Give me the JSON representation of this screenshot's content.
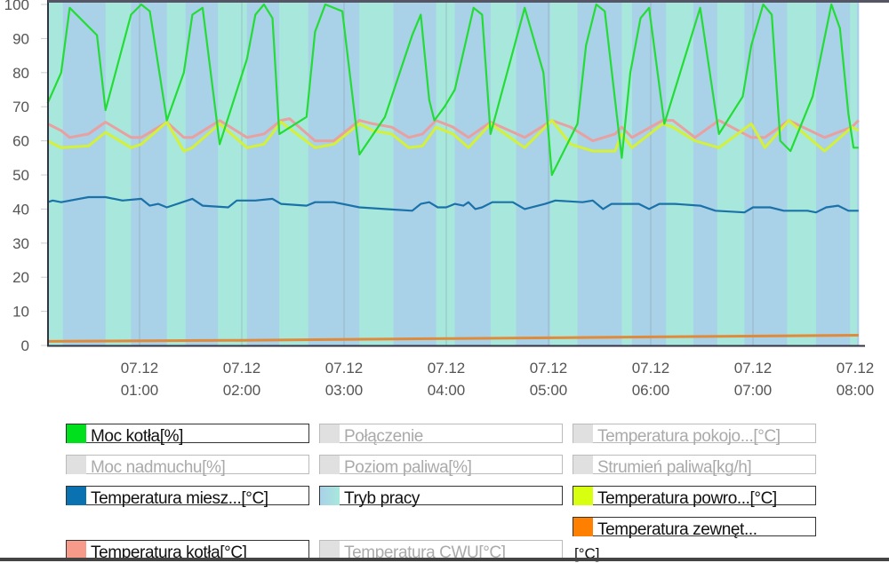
{
  "chart_data": {
    "type": "line",
    "ylim": [
      0,
      100
    ],
    "yticks": [
      "0",
      "10",
      "20",
      "30",
      "40",
      "50",
      "60",
      "70",
      "80",
      "90",
      "100"
    ],
    "xticks": [
      {
        "date": "07.12",
        "time": "01:00"
      },
      {
        "date": "07.12",
        "time": "02:00"
      },
      {
        "date": "07.12",
        "time": "03:00"
      },
      {
        "date": "07.12",
        "time": "04:00"
      },
      {
        "date": "07.12",
        "time": "05:00"
      },
      {
        "date": "07.12",
        "time": "06:00"
      },
      {
        "date": "07.12",
        "time": "07:00"
      },
      {
        "date": "07.12",
        "time": "08:00"
      }
    ],
    "xlim": [
      "00:06",
      "08:02"
    ],
    "grid": "vertical lines at hours",
    "background_bands": {
      "name": "Tryb pracy",
      "colors": [
        "#a8e8dc",
        "#a9d1e8"
      ],
      "boundaries": [
        "00:06",
        "00:15",
        "00:40",
        "00:55",
        "01:16",
        "01:27",
        "01:46",
        "02:03",
        "02:22",
        "02:39",
        "03:09",
        "03:29",
        "03:54",
        "04:05",
        "04:26",
        "04:41",
        "05:01",
        "05:17",
        "05:43",
        "05:49",
        "06:09",
        "06:25",
        "06:39",
        "06:55",
        "07:20",
        "07:37",
        "07:57",
        "08:01",
        "08:02"
      ]
    },
    "series": [
      {
        "name": "Moc kotła[%]",
        "color": "#22dd33",
        "x": [
          "00:06",
          "00:14",
          "00:19",
          "00:35",
          "00:40",
          "00:55",
          "01:01",
          "01:06",
          "01:16",
          "01:26",
          "01:31",
          "01:37",
          "01:47",
          "02:03",
          "02:08",
          "02:13",
          "02:18",
          "02:22",
          "02:38",
          "02:43",
          "02:49",
          "02:59",
          "03:09",
          "03:24",
          "03:40",
          "03:45",
          "03:50",
          "03:53",
          "03:59",
          "04:05",
          "04:16",
          "04:21",
          "04:26",
          "04:46",
          "04:57",
          "05:02",
          "05:17",
          "05:22",
          "05:28",
          "05:33",
          "05:43",
          "05:48",
          "05:54",
          "05:59",
          "06:08",
          "06:29",
          "06:40",
          "06:54",
          "06:59",
          "07:06",
          "07:11",
          "07:16",
          "07:22",
          "07:35",
          "07:46",
          "07:51",
          "07:56",
          "07:59",
          "08:02"
        ],
        "y": [
          71,
          80,
          99,
          91,
          69,
          97,
          100,
          98,
          66,
          80,
          97,
          99,
          59,
          84,
          97,
          100,
          96,
          62,
          67,
          92,
          100,
          98,
          56,
          67,
          91,
          97,
          72,
          66,
          70,
          75,
          99,
          97,
          62,
          99,
          80,
          50,
          65,
          88,
          100,
          98,
          55,
          80,
          96,
          99,
          65,
          99,
          62,
          73,
          88,
          100,
          97,
          60,
          57,
          73,
          100,
          93,
          68,
          58,
          58
        ]
      },
      {
        "name": "Temperatura kotła[°C]",
        "color": "#e8a0a0",
        "x": [
          "00:06",
          "00:14",
          "00:19",
          "00:30",
          "00:40",
          "00:55",
          "01:01",
          "01:16",
          "01:26",
          "01:31",
          "01:47",
          "02:03",
          "02:13",
          "02:23",
          "02:28",
          "02:43",
          "02:54",
          "03:09",
          "03:17",
          "03:28",
          "03:38",
          "03:46",
          "03:54",
          "04:04",
          "04:13",
          "04:26",
          "04:46",
          "05:02",
          "05:13",
          "05:26",
          "05:39",
          "05:43",
          "05:49",
          "06:07",
          "06:13",
          "06:26",
          "06:40",
          "06:59",
          "07:07",
          "07:21",
          "07:42",
          "07:58",
          "08:02"
        ],
        "y": [
          65,
          63,
          61,
          62,
          65.5,
          61,
          61,
          65.5,
          61,
          61,
          66,
          61,
          62,
          66,
          66.5,
          60,
          60,
          66,
          65,
          64,
          61,
          62,
          66,
          64,
          61,
          65.5,
          61,
          66,
          64,
          60,
          62,
          64,
          61,
          66,
          66,
          61,
          66,
          61,
          61,
          66,
          61,
          64,
          66
        ]
      },
      {
        "name": "Temperatura powro...[°C]",
        "color": "#d4f03a",
        "x": [
          "00:06",
          "00:14",
          "00:30",
          "00:40",
          "00:55",
          "01:01",
          "01:16",
          "01:26",
          "01:31",
          "01:47",
          "02:03",
          "02:13",
          "02:23",
          "02:43",
          "02:54",
          "03:09",
          "03:17",
          "03:28",
          "03:38",
          "03:46",
          "03:54",
          "04:04",
          "04:13",
          "04:26",
          "04:46",
          "05:02",
          "05:13",
          "05:26",
          "05:39",
          "05:43",
          "05:49",
          "06:07",
          "06:13",
          "06:26",
          "06:40",
          "06:59",
          "07:07",
          "07:21",
          "07:42",
          "07:58",
          "08:02"
        ],
        "y": [
          60,
          58,
          58.5,
          62.5,
          58,
          59,
          65.5,
          57,
          58,
          65,
          58,
          59,
          65.5,
          58,
          59,
          65,
          63,
          62,
          58,
          58.5,
          64,
          62,
          58,
          65,
          58,
          66,
          59,
          57,
          57,
          62,
          58,
          65,
          64,
          60,
          58,
          65,
          58,
          66,
          57,
          64,
          63
        ]
      },
      {
        "name": "Temperatura miesz...[°C]",
        "color": "#1a72a8",
        "x": [
          "00:06",
          "00:09",
          "00:14",
          "00:30",
          "00:40",
          "00:50",
          "01:01",
          "01:06",
          "01:11",
          "01:16",
          "01:31",
          "01:37",
          "01:52",
          "01:57",
          "02:08",
          "02:18",
          "02:23",
          "02:38",
          "02:43",
          "02:54",
          "03:09",
          "03:24",
          "03:40",
          "03:45",
          "03:50",
          "03:55",
          "04:00",
          "04:05",
          "04:10",
          "04:13",
          "04:17",
          "04:21",
          "04:27",
          "04:39",
          "04:46",
          "04:58",
          "05:04",
          "05:20",
          "05:26",
          "05:32",
          "05:37",
          "05:53",
          "05:59",
          "06:05",
          "06:14",
          "06:29",
          "06:38",
          "06:55",
          "07:00",
          "07:10",
          "07:18",
          "07:32",
          "07:37",
          "07:43",
          "07:50",
          "07:56",
          "08:02"
        ],
        "y": [
          42,
          42.5,
          42,
          43.5,
          43.5,
          42.5,
          43,
          41,
          41.5,
          40.5,
          43,
          41,
          40.5,
          42.5,
          42.5,
          43,
          41.5,
          41,
          42,
          42,
          40.5,
          40,
          39.5,
          41.5,
          42,
          40.5,
          40.5,
          41.5,
          41,
          42,
          40,
          40.5,
          42,
          42,
          40,
          41.5,
          42.5,
          42,
          42.5,
          40,
          41.5,
          41.5,
          40,
          41.5,
          41.5,
          41,
          39.5,
          39,
          40.5,
          40.5,
          39.5,
          39.5,
          39,
          40.5,
          41,
          39.5,
          39.5
        ]
      },
      {
        "name": "Temperatura zewnęt...[°C]",
        "color": "#e08a3a",
        "x": [
          "00:06",
          "02:00",
          "04:00",
          "06:00",
          "08:02"
        ],
        "y": [
          1.2,
          1.5,
          2.0,
          2.5,
          3.0
        ]
      }
    ]
  },
  "legend": [
    {
      "label": "Moc kotła[%]",
      "color": "#00e01c",
      "active": true
    },
    {
      "label": "Połączenie",
      "color": "#e0e0e0",
      "active": false
    },
    {
      "label": "Temperatura pokojo...[°C]",
      "color": "#e0e0e0",
      "active": false
    },
    {
      "label": "Moc nadmuchu[%]",
      "color": "#e0e0e0",
      "active": false
    },
    {
      "label": "Poziom paliwa[%]",
      "color": "#e0e0e0",
      "active": false
    },
    {
      "label": "Strumień paliwa[kg/h]",
      "color": "#e0e0e0",
      "active": false
    },
    {
      "label": "Temperatura miesz...[°C]",
      "color": "#0a72b0",
      "active": true
    },
    {
      "label": "Tryb pracy",
      "color": "linear-gradient(90deg,#a9d1e8,#a8e8dc)",
      "active": true
    },
    {
      "label": "Temperatura powro...[°C]",
      "color": "#d8ff10",
      "active": true
    },
    {
      "label": "Temperatura zewnęt...",
      "color": "#ff8000",
      "active": true
    },
    {
      "label": "Temperatura kotła[°C]",
      "color": "#f89a8a",
      "active": true
    },
    {
      "label": "Temperatura CWU[°C]",
      "color": "#e0e0e0",
      "active": false
    }
  ],
  "legend_overflow": "[°C]"
}
